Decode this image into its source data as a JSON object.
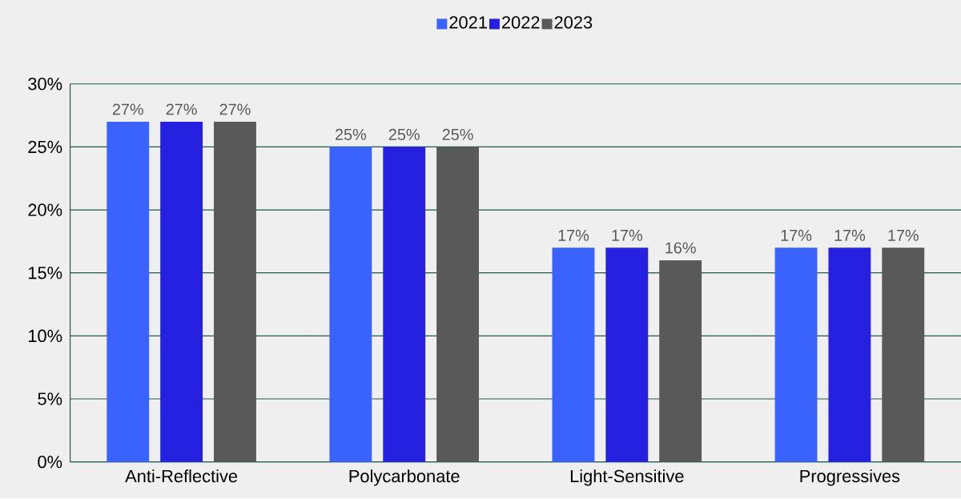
{
  "chart_data": {
    "type": "bar",
    "categories": [
      "Anti-Reflective",
      "Polycarbonate",
      "Light-Sensitive",
      "Progressives"
    ],
    "series": [
      {
        "name": "2021",
        "color": "#3a62fd",
        "values": [
          27,
          25,
          17,
          17
        ],
        "value_labels": [
          "27%",
          "25%",
          "17%",
          "17%"
        ]
      },
      {
        "name": "2022",
        "color": "#2620e0",
        "values": [
          27,
          25,
          17,
          17
        ],
        "value_labels": [
          "27%",
          "25%",
          "17%",
          "17%"
        ]
      },
      {
        "name": "2023",
        "color": "#595959",
        "values": [
          27,
          25,
          16,
          17
        ],
        "value_labels": [
          "27%",
          "25%",
          "16%",
          "17%"
        ]
      }
    ],
    "ylim": [
      0,
      30
    ],
    "yticks": [
      {
        "value": 0,
        "label": "0%"
      },
      {
        "value": 5,
        "label": "5%"
      },
      {
        "value": 10,
        "label": "10%"
      },
      {
        "value": 15,
        "label": "15%"
      },
      {
        "value": 20,
        "label": "20%"
      },
      {
        "value": 25,
        "label": "25%"
      },
      {
        "value": 30,
        "label": "30%"
      }
    ],
    "grid": "y",
    "legend": "top"
  }
}
